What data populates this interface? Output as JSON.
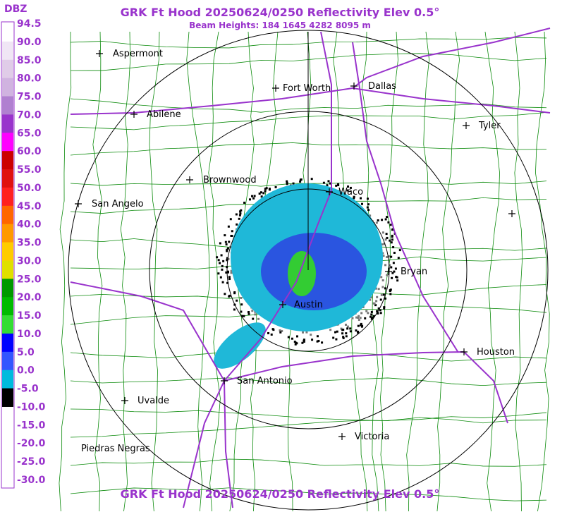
{
  "header": {
    "title": "GRK Ft Hood 20250624/0250 Reflectivity Elev 0.5°",
    "subtitle": "Beam Heights: 184 1645 4282 8095 m"
  },
  "legend": {
    "unit": "DBZ",
    "labels": [
      "94.5",
      "90.0",
      "85.0",
      "80.0",
      "75.0",
      "70.0",
      "65.0",
      "60.0",
      "55.0",
      "50.0",
      "45.0",
      "40.0",
      "35.0",
      "30.0",
      "25.0",
      "20.0",
      "15.0",
      "10.0",
      "5.0",
      "0.0",
      "-5.0",
      "-10.0",
      "-15.0",
      "-20.0",
      "-25.0",
      "-30.0"
    ]
  },
  "cities": [
    "Aspermont",
    "Fort Worth",
    "Dallas",
    "Abilene",
    "Tyler",
    "Brownwood",
    "Waco",
    "San Angelo",
    "Bryan",
    "Austin",
    "Houston",
    "San Antonio",
    "Uvalde",
    "Victoria",
    "Piedras Negras"
  ],
  "footer": {
    "title": "GRK Ft Hood 20250624/0250 Reflectivity Elev 0.5°"
  }
}
